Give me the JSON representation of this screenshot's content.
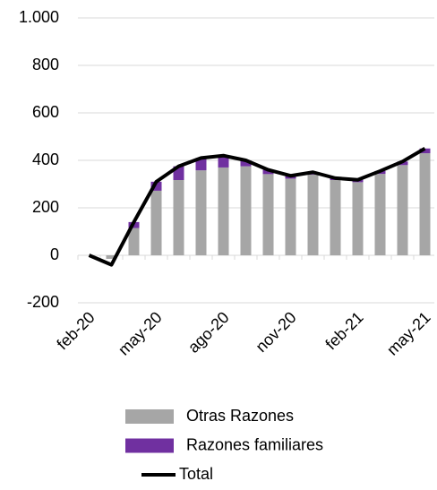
{
  "chart_data": {
    "type": "bar",
    "categories": [
      "feb-20",
      null,
      null,
      "may-20",
      null,
      null,
      "ago-20",
      null,
      null,
      "nov-20",
      null,
      null,
      "feb-21",
      null,
      null,
      "may-21"
    ],
    "series": [
      {
        "name": "Otras Razones",
        "color": "#a6a6a6",
        "type": "bar",
        "values": [
          0,
          -15,
          115,
          272,
          317,
          358,
          370,
          375,
          342,
          323,
          340,
          317,
          308,
          343,
          380,
          430
        ]
      },
      {
        "name": "Razones familiares",
        "color": "#7030a0",
        "type": "bar",
        "values": [
          0,
          0,
          25,
          38,
          58,
          52,
          50,
          25,
          18,
          12,
          10,
          8,
          10,
          12,
          15,
          20
        ]
      },
      {
        "name": "Total",
        "color": "#000000",
        "type": "line",
        "values": [
          0,
          -40,
          140,
          310,
          375,
          410,
          420,
          400,
          360,
          335,
          350,
          325,
          318,
          355,
          395,
          450
        ]
      }
    ],
    "stacked": true,
    "ylim": [
      -200,
      1000
    ],
    "yticks": [
      -200,
      0,
      200,
      400,
      600,
      800,
      {
        "value": 1000,
        "label": "1.000"
      }
    ],
    "grid": true,
    "legend": "bottom"
  }
}
